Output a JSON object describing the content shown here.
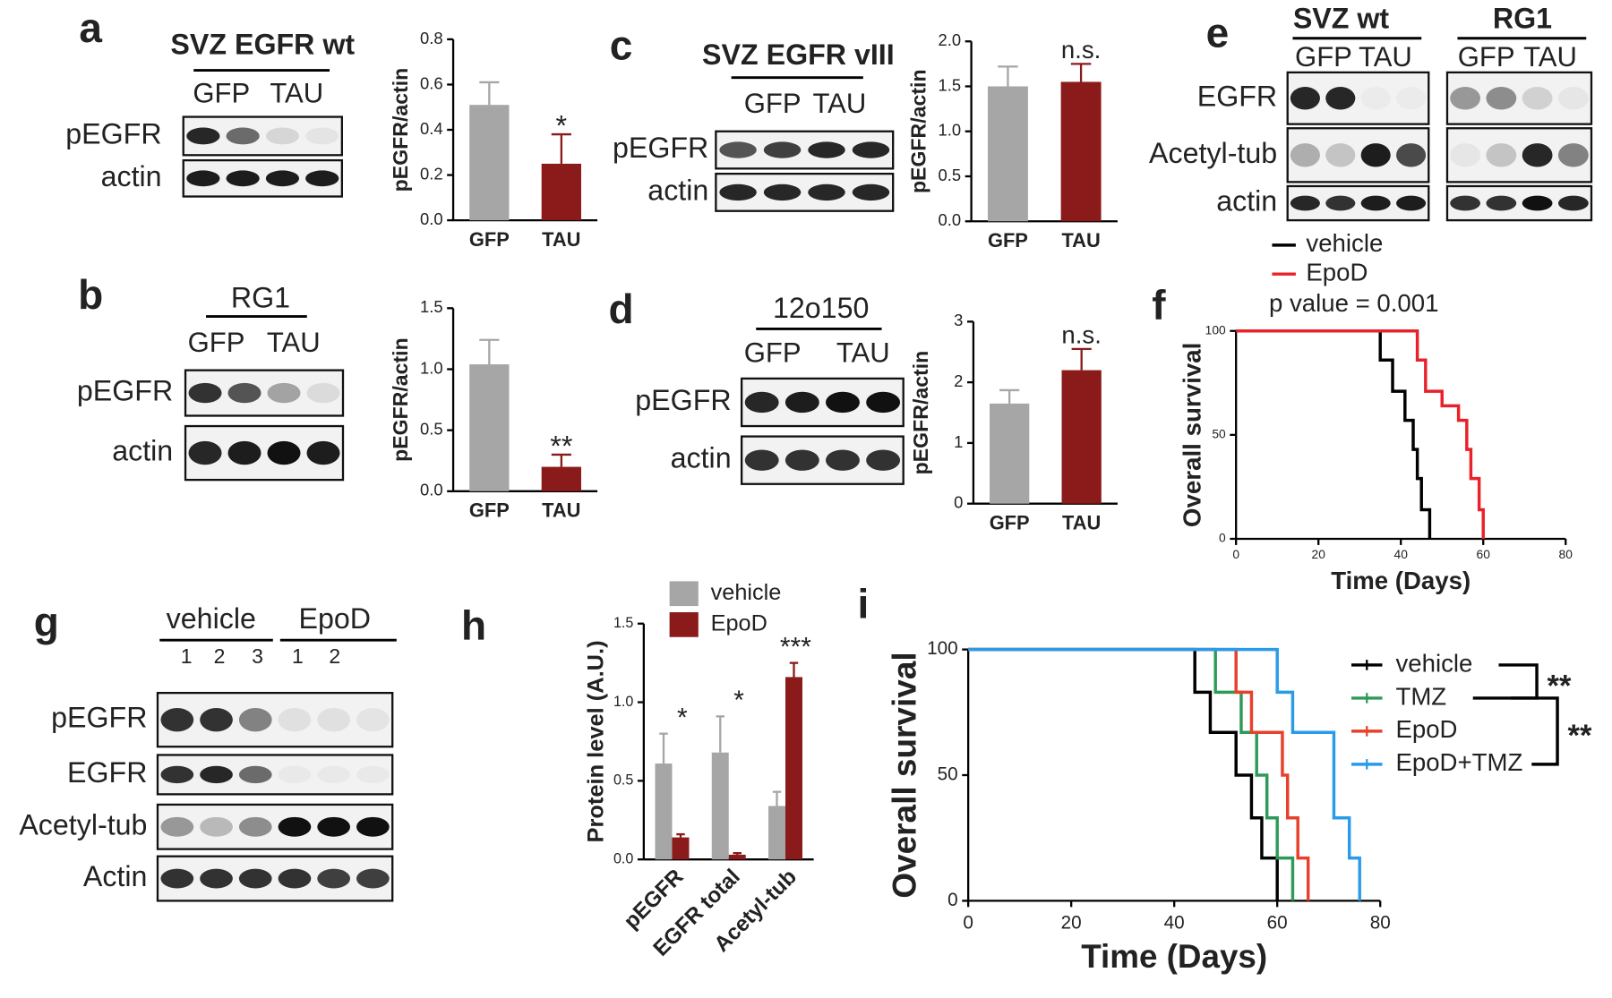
{
  "panel_labels": [
    "a",
    "b",
    "c",
    "d",
    "e",
    "f",
    "g",
    "h",
    "i"
  ],
  "blots": [
    {
      "groups": [
        {
          "name": "SVZ EGFR wt",
          "lanes": [
            "GFP",
            "TAU"
          ]
        }
      ],
      "rows": [
        "pEGFR",
        "actin"
      ]
    },
    {
      "groups": [
        {
          "name": "RG1",
          "lanes": [
            "GFP",
            "TAU"
          ]
        }
      ],
      "rows": [
        "pEGFR",
        "actin"
      ]
    },
    {
      "groups": [
        {
          "name": "SVZ EGFR vIII",
          "lanes": [
            "GFP",
            "TAU"
          ]
        }
      ],
      "rows": [
        "pEGFR",
        "actin"
      ]
    },
    {
      "groups": [
        {
          "name": "12o150",
          "lanes": [
            "GFP",
            "TAU"
          ]
        }
      ],
      "rows": [
        "pEGFR",
        "actin"
      ]
    },
    {
      "groups": [
        {
          "name": "SVZ wt",
          "lanes": [
            "GFP",
            "TAU"
          ]
        },
        {
          "name": "RG1",
          "lanes": [
            "GFP",
            "TAU"
          ]
        }
      ],
      "rows": [
        "EGFR",
        "Acetyl-tub",
        "actin"
      ]
    },
    {
      "groups": [
        {
          "name": "vehicle",
          "lanes": [
            "1",
            "2",
            "3"
          ]
        },
        {
          "name": "EpoD",
          "lanes": [
            "1",
            "2"
          ]
        }
      ],
      "rows": [
        "pEGFR",
        "EGFR",
        "Acetyl-tub",
        "Actin"
      ]
    }
  ],
  "chart_data": [
    {
      "type": "bar",
      "y_label": "pEGFR/actin",
      "categories": [
        "GFP",
        "TAU"
      ],
      "values": [
        0.51,
        0.25
      ],
      "errors": [
        0.1,
        0.13
      ],
      "colors": [
        "#a6a6a6",
        "#8b1a1a"
      ],
      "significance": [
        null,
        "*"
      ],
      "ylim": [
        0,
        0.8
      ],
      "yticks": [
        {
          "value": 0,
          "label": "0.0"
        },
        0.2,
        0.4,
        0.6,
        0.8
      ]
    },
    {
      "type": "bar",
      "y_label": "pEGFR/actin",
      "categories": [
        "GFP",
        "TAU"
      ],
      "values": [
        1.04,
        0.2
      ],
      "errors": [
        0.2,
        0.1
      ],
      "colors": [
        "#a6a6a6",
        "#8b1a1a"
      ],
      "significance": [
        null,
        "**"
      ],
      "ylim": [
        0,
        1.5
      ],
      "yticks": [
        {
          "value": 0,
          "label": "0.0"
        },
        0.5,
        {
          "value": 1,
          "label": "1.0"
        },
        1.5
      ]
    },
    {
      "type": "bar",
      "y_label": "pEGFR/actin",
      "categories": [
        "GFP",
        "TAU"
      ],
      "values": [
        1.5,
        1.55
      ],
      "errors": [
        0.22,
        0.2
      ],
      "colors": [
        "#a6a6a6",
        "#8b1a1a"
      ],
      "significance": [
        null,
        "n.s."
      ],
      "ylim": [
        0,
        2
      ],
      "yticks": [
        {
          "value": 0,
          "label": "0.0"
        },
        0.5,
        {
          "value": 1,
          "label": "1.0"
        },
        1.5,
        {
          "value": 2,
          "label": "2.0"
        }
      ]
    },
    {
      "type": "bar",
      "y_label": "pEGFR/actin",
      "categories": [
        "GFP",
        "TAU"
      ],
      "values": [
        1.65,
        2.2
      ],
      "errors": [
        0.22,
        0.35
      ],
      "colors": [
        "#a6a6a6",
        "#8b1a1a"
      ],
      "significance": [
        null,
        "n.s."
      ],
      "ylim": [
        0,
        3
      ],
      "yticks": [
        0,
        1,
        2,
        3
      ]
    },
    {
      "type": "survival",
      "x_label": "Time (Days)",
      "y_label": "Overall survival",
      "annotations": [
        "p value = 0.001"
      ],
      "series": [
        {
          "name": "vehicle",
          "color": "#000000",
          "x": [
            0,
            35,
            38,
            41,
            43,
            44,
            45,
            47
          ],
          "values": [
            100,
            86,
            71,
            57,
            43,
            29,
            14,
            0
          ]
        },
        {
          "name": "EpoD",
          "color": "#e8222a",
          "x": [
            0,
            44,
            46,
            50,
            54,
            56,
            57,
            59,
            60
          ],
          "values": [
            100,
            86,
            71,
            64,
            57,
            43,
            29,
            14,
            0
          ]
        }
      ],
      "xlim": [
        0,
        80
      ],
      "xticks": [
        0,
        20,
        40,
        60,
        80
      ],
      "ylim": [
        0,
        100
      ],
      "yticks": [
        0,
        50,
        100
      ]
    },
    {
      "type": "bar",
      "y_label": "Protein level (A.U.)",
      "categories": [
        "pEGFR",
        "EGFR total",
        "Acetyl-tub"
      ],
      "significance": [
        "*",
        "*",
        "***"
      ],
      "series": [
        {
          "name": "vehicle",
          "color": "#a6a6a6",
          "values": [
            0.61,
            0.68,
            0.34
          ],
          "errors": [
            0.19,
            0.23,
            0.09
          ]
        },
        {
          "name": "EpoD",
          "color": "#8b1a1a",
          "values": [
            0.14,
            0.03,
            1.16
          ],
          "errors": [
            0.02,
            0.01,
            0.09
          ]
        }
      ],
      "ylim": [
        0,
        1.5
      ],
      "yticks": [
        {
          "value": 0,
          "label": "0.0"
        },
        0.5,
        {
          "value": 1,
          "label": "1.0"
        },
        1.5
      ]
    },
    {
      "type": "survival",
      "x_label": "Time (Days)",
      "y_label": "Overall survival",
      "annotations": [
        "**",
        "**"
      ],
      "series": [
        {
          "name": "vehicle",
          "color": "#000000",
          "x": [
            0,
            44,
            47,
            52,
            55,
            57,
            60
          ],
          "values": [
            100,
            83,
            67,
            50,
            33,
            17,
            0
          ]
        },
        {
          "name": "TMZ",
          "color": "#2e9a5a",
          "x": [
            0,
            48,
            53,
            56,
            58,
            60,
            63
          ],
          "values": [
            100,
            83,
            67,
            50,
            33,
            17,
            0
          ]
        },
        {
          "name": "EpoD",
          "color": "#e8402a",
          "x": [
            0,
            52,
            55,
            61,
            62,
            64,
            66
          ],
          "values": [
            100,
            83,
            67,
            50,
            33,
            17,
            0
          ]
        },
        {
          "name": "EpoD+TMZ",
          "color": "#2a9be8",
          "x": [
            0,
            60,
            63,
            71,
            74,
            76
          ],
          "values": [
            100,
            83,
            67,
            33,
            17,
            0
          ]
        }
      ],
      "xlim": [
        0,
        80
      ],
      "xticks": [
        0,
        20,
        40,
        60,
        80
      ],
      "ylim": [
        0,
        100
      ],
      "yticks": [
        0,
        50,
        100
      ]
    }
  ]
}
